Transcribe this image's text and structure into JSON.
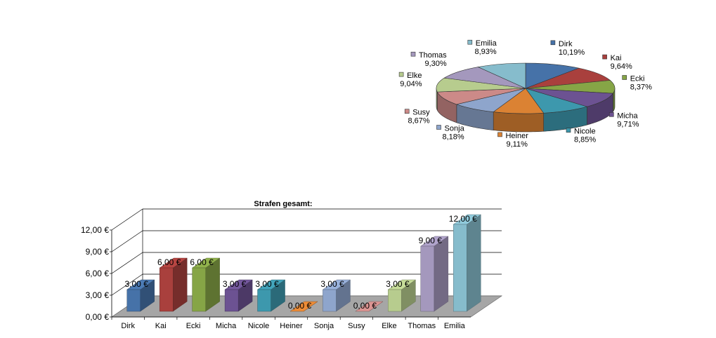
{
  "chart_data": [
    {
      "type": "pie",
      "style": "3d",
      "title": "",
      "slices": [
        {
          "name": "Dirk",
          "label": "10,19%",
          "value": 10.19,
          "color": "#4672a8"
        },
        {
          "name": "Kai",
          "label": "9,64%",
          "value": 9.64,
          "color": "#a9403d"
        },
        {
          "name": "Ecki",
          "label": "8,37%",
          "value": 8.37,
          "color": "#86a546"
        },
        {
          "name": "Micha",
          "label": "9,71%",
          "value": 9.71,
          "color": "#6c5292"
        },
        {
          "name": "Nicole",
          "label": "8,85%",
          "value": 8.85,
          "color": "#3d98ad"
        },
        {
          "name": "Heiner",
          "label": "9,11%",
          "value": 9.11,
          "color": "#db8233"
        },
        {
          "name": "Sonja",
          "label": "8,18%",
          "value": 8.18,
          "color": "#8ea5cc"
        },
        {
          "name": "Susy",
          "label": "8,67%",
          "value": 8.67,
          "color": "#cc8a88"
        },
        {
          "name": "Elke",
          "label": "9,04%",
          "value": 9.04,
          "color": "#b7cc8e"
        },
        {
          "name": "Thomas",
          "label": "9,30%",
          "value": 9.3,
          "color": "#a498bd"
        },
        {
          "name": "Emilia",
          "label": "8,93%",
          "value": 8.93,
          "color": "#86bccc"
        }
      ]
    },
    {
      "type": "bar",
      "style": "3d",
      "title": "Strafen gesamt:",
      "categories": [
        "Dirk",
        "Kai",
        "Ecki",
        "Micha",
        "Nicole",
        "Heiner",
        "Sonja",
        "Susy",
        "Elke",
        "Thomas",
        "Emilia"
      ],
      "values": [
        3,
        6,
        6,
        3,
        3,
        0,
        3,
        0,
        3,
        9,
        12
      ],
      "data_labels": [
        "3,00 €",
        "6,00 €",
        "6,00 €",
        "3,00 €",
        "3,00 €",
        "0,00 €",
        "3,00 €",
        "0,00 €",
        "3,00 €",
        "9,00 €",
        "12,00 €"
      ],
      "colors": [
        "#4672a8",
        "#a9403d",
        "#86a546",
        "#6c5292",
        "#3d98ad",
        "#db8233",
        "#8ea5cc",
        "#cc8a88",
        "#b7cc8e",
        "#a498bd",
        "#86bccc"
      ],
      "ylim": [
        0,
        12
      ],
      "yticks": [
        0,
        3,
        6,
        9,
        12
      ],
      "ytick_labels": [
        "0,00 €",
        "3,00 €",
        "6,00 €",
        "9,00 €",
        "12,00 €"
      ],
      "grid": true,
      "legend": "none"
    }
  ]
}
